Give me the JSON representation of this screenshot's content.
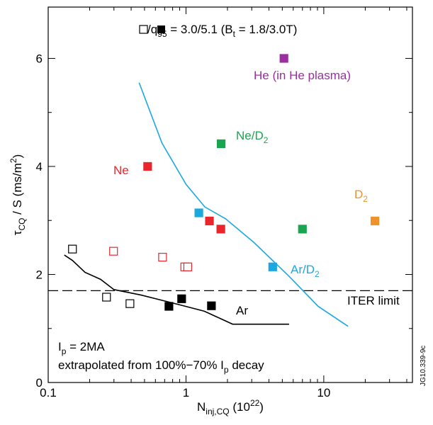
{
  "chart_data": {
    "type": "scatter",
    "x_label": [
      "N",
      "inj,CQ",
      " (10",
      "22",
      ")"
    ],
    "y_label": [
      "τ",
      "CQ",
      " / S (ms/m",
      "2",
      ")"
    ],
    "xscale": "log",
    "xlim": [
      0.1,
      44
    ],
    "ylim": [
      0,
      6.95
    ],
    "xticks": [
      0.1,
      1,
      10
    ],
    "x_minor_ticks": [
      0.2,
      0.3,
      0.4,
      0.5,
      0.6,
      0.7,
      0.8,
      0.9,
      2,
      3,
      4,
      5,
      6,
      7,
      8,
      9,
      20,
      30,
      40
    ],
    "yticks": [
      0,
      2,
      4,
      6
    ],
    "y_minor_ticks": [
      1,
      3,
      5
    ],
    "series": [
      {
        "color": "#000000",
        "filled": false,
        "x": [
          0.15,
          0.265,
          0.392
        ],
        "y": [
          2.47,
          1.58,
          1.46
        ]
      },
      {
        "color": "#000000",
        "filled": true,
        "x": [
          0.752,
          0.93,
          1.53
        ],
        "y": [
          1.41,
          1.55,
          1.42
        ]
      },
      {
        "color": "#e8262b",
        "filled": false,
        "x": [
          0.298,
          0.676,
          0.98,
          1.03
        ],
        "y": [
          2.43,
          2.32,
          2.14,
          2.14
        ]
      },
      {
        "color": "#e8262b",
        "filled": true,
        "x": [
          0.527,
          1.48,
          1.79
        ],
        "y": [
          4.0,
          2.99,
          2.84
        ]
      },
      {
        "color": "#1ba8e0",
        "filled": true,
        "x": [
          1.24,
          4.26
        ],
        "y": [
          3.14,
          2.14
        ]
      },
      {
        "color": "#1aa650",
        "filled": true,
        "x": [
          1.8,
          7.0
        ],
        "y": [
          4.42,
          2.84
        ]
      },
      {
        "color": "#9b2fa0",
        "filled": true,
        "x": [
          5.14
        ],
        "y": [
          6.0
        ]
      },
      {
        "color": "#f0922b",
        "filled": true,
        "x": [
          23.5
        ],
        "y": [
          2.99
        ]
      }
    ],
    "curves": [
      {
        "color": "#1ba8e0",
        "x": [
          0.457,
          0.67,
          1.0,
          1.37,
          1.94,
          3.12,
          5.63,
          9.1,
          15
        ],
        "y": [
          5.55,
          4.43,
          3.67,
          3.25,
          3.03,
          2.59,
          1.96,
          1.41,
          1.04
        ]
      },
      {
        "color": "#000000",
        "x": [
          0.131,
          0.15,
          0.185,
          0.24,
          0.3,
          0.47,
          0.75,
          1.36,
          2.18,
          5.6
        ],
        "y": [
          2.36,
          2.26,
          2.04,
          1.91,
          1.72,
          1.62,
          1.49,
          1.32,
          1.08,
          1.08
        ]
      }
    ],
    "iter_limit": 1.7,
    "annotations": {
      "legend": [
        "/",
        "q",
        "95",
        " = 3.0/5.1 (B",
        "t",
        " = 1.8/3.0T)"
      ],
      "he": [
        "He (in He plasma)"
      ],
      "ne_d2": [
        "Ne/D",
        "2"
      ],
      "ne": [
        "Ne"
      ],
      "d2": [
        "D",
        "2"
      ],
      "ar_d2": [
        "Ar/D",
        "2"
      ],
      "ar": [
        "Ar"
      ],
      "iter": [
        "ITER limit"
      ],
      "ip": [
        "I",
        "p",
        " = 2MA"
      ],
      "extrap": [
        "extrapolated from 100%−70% I",
        "p",
        " decay"
      ]
    },
    "figure_id": "JG10.339-9c"
  }
}
